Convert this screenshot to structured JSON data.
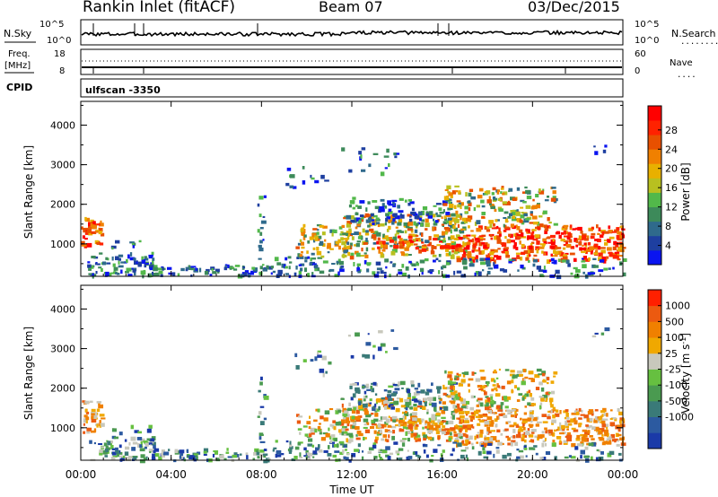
{
  "header": {
    "station": "Rankin Inlet (fitACF)",
    "beam": "Beam 07",
    "date": "03/Dec/2015"
  },
  "status_panels": {
    "nsky_label": "N.Sky",
    "nsearch_label": "N.Search",
    "noise_ticks": [
      "10^5",
      "10^0"
    ],
    "freq_label": "Freq.",
    "freq_unit": "[MHz]",
    "freq_ticks": [
      "18",
      "8"
    ],
    "nave_label": "Nave",
    "nave_ticks": [
      "60",
      "0"
    ],
    "cpid_label": "CPID",
    "cpid_value": "ulfscan -3350"
  },
  "legend_symbols": {
    "dotted": "........",
    "dashed": "...."
  },
  "colors": {
    "power_scale": [
      "#0a14f0",
      "#1e3fa0",
      "#2f6a8c",
      "#3d8a5a",
      "#52b84a",
      "#b8c020",
      "#e8b000",
      "#f08000",
      "#e85000",
      "#ff2200",
      "#ff0000"
    ],
    "velocity_scale": [
      "#1a3aa8",
      "#2c5aa0",
      "#3a7a78",
      "#4a9a50",
      "#66c040",
      "#c8c8bc",
      "#f0a800",
      "#f08000",
      "#ec5a10",
      "#ff2000"
    ]
  },
  "chart_data": [
    {
      "type": "heatmap",
      "title": "",
      "ylabel": "Slant Range [km]",
      "ylim": [
        180,
        4600
      ],
      "yticks": [
        "1000",
        "2000",
        "3000",
        "4000"
      ],
      "colorbar": {
        "label": "Power [dB]",
        "range": [
          0,
          33
        ],
        "ticks": [
          "4",
          "8",
          "12",
          "16",
          "20",
          "24",
          "28"
        ]
      }
    },
    {
      "type": "heatmap",
      "title": "",
      "ylabel": "Slant Range [km]",
      "xlabel": "Time UT",
      "xlim_hours": [
        0,
        24
      ],
      "xticks": [
        "00:00",
        "04:00",
        "08:00",
        "12:00",
        "16:00",
        "20:00",
        "00:00"
      ],
      "ylim": [
        180,
        4600
      ],
      "yticks": [
        "1000",
        "2000",
        "3000",
        "4000"
      ],
      "colorbar": {
        "label": "Velocity [m s",
        "label_superscript": "-1",
        "label_close": "]",
        "ticks": [
          "1000",
          "500",
          "100",
          "25",
          "-25",
          "-100",
          "-500",
          "-1000"
        ]
      }
    }
  ]
}
